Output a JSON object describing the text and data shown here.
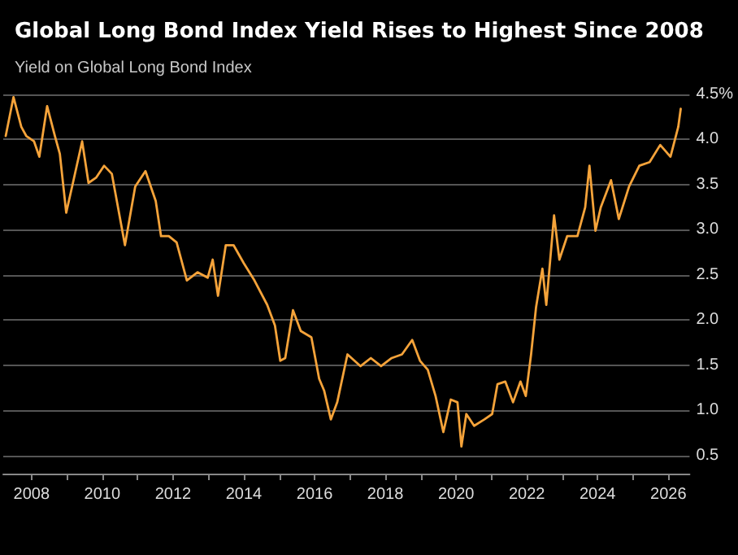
{
  "chart_data": {
    "type": "line",
    "title": "Global Long Bond Index Yield Rises to Highest Since 2008",
    "subtitle": "Yield on Global Long Bond Index",
    "x": [
      2007.27,
      2007.49,
      2007.71,
      2007.85,
      2008.07,
      2008.22,
      2008.44,
      2008.66,
      2008.8,
      2008.98,
      2009.17,
      2009.43,
      2009.61,
      2009.83,
      2010.05,
      2010.27,
      2010.64,
      2010.93,
      2011.22,
      2011.51,
      2011.66,
      2011.88,
      2012.1,
      2012.39,
      2012.69,
      2012.98,
      2013.12,
      2013.27,
      2013.49,
      2013.71,
      2014.0,
      2014.3,
      2014.66,
      2014.88,
      2015.03,
      2015.17,
      2015.39,
      2015.61,
      2015.91,
      2016.13,
      2016.27,
      2016.46,
      2016.64,
      2016.93,
      2017.3,
      2017.59,
      2017.88,
      2018.18,
      2018.47,
      2018.76,
      2018.98,
      2019.2,
      2019.42,
      2019.64,
      2019.85,
      2020.04,
      2020.15,
      2020.29,
      2020.51,
      2020.8,
      2021.02,
      2021.17,
      2021.39,
      2021.61,
      2021.82,
      2021.97,
      2022.12,
      2022.26,
      2022.44,
      2022.55,
      2022.77,
      2022.92,
      2023.14,
      2023.43,
      2023.65,
      2023.77,
      2023.94,
      2024.09,
      2024.38,
      2024.6,
      2024.89,
      2025.18,
      2025.47,
      2025.77,
      2026.06,
      2026.28,
      2026.35
    ],
    "series": [
      {
        "color": "#f5a33a",
        "values": [
          4.04,
          4.47,
          4.14,
          4.04,
          3.98,
          3.81,
          4.37,
          4.04,
          3.84,
          3.19,
          3.52,
          3.98,
          3.52,
          3.58,
          3.71,
          3.62,
          2.83,
          3.48,
          3.65,
          3.32,
          2.93,
          2.93,
          2.86,
          2.44,
          2.53,
          2.47,
          2.67,
          2.27,
          2.83,
          2.83,
          2.63,
          2.44,
          2.17,
          1.94,
          1.55,
          1.58,
          2.11,
          1.88,
          1.81,
          1.35,
          1.22,
          0.9,
          1.09,
          1.62,
          1.49,
          1.58,
          1.49,
          1.58,
          1.62,
          1.78,
          1.55,
          1.45,
          1.16,
          0.76,
          1.12,
          1.09,
          0.6,
          0.96,
          0.83,
          0.9,
          0.96,
          1.29,
          1.32,
          1.09,
          1.32,
          1.16,
          1.62,
          2.14,
          2.57,
          2.17,
          3.16,
          2.67,
          2.93,
          2.93,
          3.25,
          3.71,
          2.99,
          3.25,
          3.55,
          3.12,
          3.48,
          3.71,
          3.75,
          3.94,
          3.81,
          4.14,
          4.34
        ]
      }
    ],
    "xlim": [
      2007.2,
      2026.6
    ],
    "xticks": [
      2008,
      {
        "value": 2009,
        "label": null
      },
      2010,
      {
        "value": 2011,
        "label": null
      },
      2012,
      {
        "value": 2013,
        "label": null
      },
      2014,
      {
        "value": 2015,
        "label": null
      },
      2016,
      {
        "value": 2017,
        "label": null
      },
      2018,
      {
        "value": 2019,
        "label": null
      },
      2020,
      {
        "value": 2021,
        "label": null
      },
      2022,
      {
        "value": 2023,
        "label": null
      },
      2024,
      {
        "value": 2025,
        "label": null
      },
      2026
    ],
    "ylim": [
      0.3,
      4.5
    ],
    "yticks": [
      0.5,
      {
        "value": 1,
        "label": "1.0"
      },
      1.5,
      {
        "value": 2,
        "label": "2.0"
      },
      2.5,
      {
        "value": 3,
        "label": "3.0"
      },
      3.5,
      {
        "value": 4,
        "label": "4.0"
      },
      {
        "value": 4.5,
        "label": "4.5%"
      }
    ],
    "grid": "y",
    "marker": "none",
    "line_style": "solid"
  }
}
